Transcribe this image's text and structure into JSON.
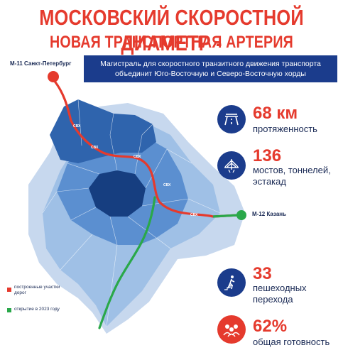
{
  "header": {
    "title_line1": "МОСКОВСКИЙ СКОРОСТНОЙ ДИАМЕТР -",
    "title_line2": "НОВАЯ ТРАНСПОРТНАЯ АРТЕРИЯ СТОЛИЦЫ",
    "subtitle": "Магистраль для скоростного транзитного движения транспорта объединит Юго-Восточную и Северо-Восточную хорды"
  },
  "map": {
    "start_label": "М-11 Санкт-Петербург",
    "end_label": "М-12 Казань",
    "ring_label": "СВХ",
    "colors": {
      "built": "#e53a2d",
      "opening": "#2aa84a",
      "district_dark": "#1f4f97",
      "district_mid": "#5b8fd0",
      "district_light": "#9fc0e6",
      "district_pale": "#c7d8ee"
    }
  },
  "legend": {
    "items": [
      {
        "label": "построенные участки дорог",
        "color": "#e53a2d"
      },
      {
        "label": "открытие в 2023 году",
        "color": "#2aa84a"
      }
    ]
  },
  "stats": [
    {
      "value": "68 км",
      "label": "протяженность",
      "icon": "road-icon"
    },
    {
      "value": "136",
      "label": "мостов, тоннелей, эстакад",
      "icon": "bridge-icon"
    },
    {
      "value": "33",
      "label": "пешеходных перехода",
      "icon": "pedestrian-icon"
    },
    {
      "value": "62%",
      "label": "общая готовность",
      "icon": "workers-icon"
    }
  ]
}
